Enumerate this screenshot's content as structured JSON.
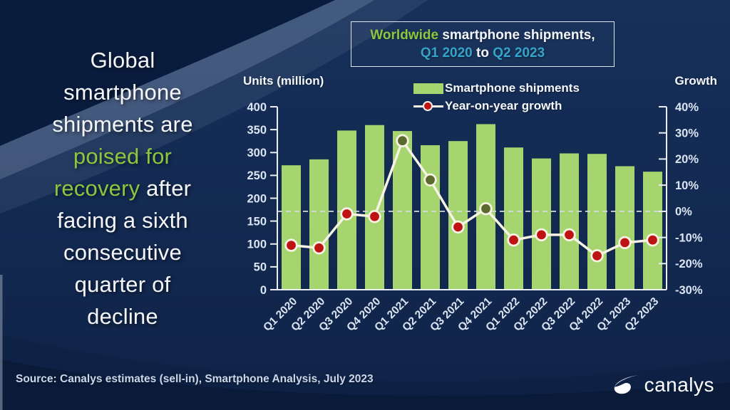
{
  "slide": {
    "headline": {
      "lines": [
        [
          {
            "t": "Global",
            "g": false
          }
        ],
        [
          {
            "t": "smartphone",
            "g": false
          }
        ],
        [
          {
            "t": "shipments are",
            "g": false
          }
        ],
        [
          {
            "t": "poised for",
            "g": true
          }
        ],
        [
          {
            "t": "recovery",
            "g": true
          },
          {
            "t": " after",
            "g": false
          }
        ],
        [
          {
            "t": "facing a sixth",
            "g": false
          }
        ],
        [
          {
            "t": "consecutive",
            "g": false
          }
        ],
        [
          {
            "t": "quarter of",
            "g": false
          }
        ],
        [
          {
            "t": "decline",
            "g": false
          }
        ]
      ]
    },
    "title": {
      "part_green": "Worldwide",
      "part_white": " smartphone shipments,",
      "range_start": "Q1 2020",
      "range_mid": " to ",
      "range_end": "Q2 2023"
    },
    "source_text": "Source: Canalys estimates (sell-in), Smartphone Analysis, July 2023",
    "logo_text": "canalys"
  },
  "chart_data": {
    "type": "bar",
    "title": "Worldwide smartphone shipments, Q1 2020 to Q2 2023",
    "categories": [
      "Q1 2020",
      "Q2 2020",
      "Q3 2020",
      "Q4 2020",
      "Q1 2021",
      "Q2 2021",
      "Q3 2021",
      "Q4 2021",
      "Q1 2022",
      "Q2 2022",
      "Q3 2022",
      "Q4 2022",
      "Q1 2023",
      "Q2 2023"
    ],
    "series": [
      {
        "name": "Smartphone shipments",
        "type": "bar",
        "axis": "left",
        "values": [
          272,
          285,
          348,
          360,
          347,
          316,
          325,
          362,
          311,
          287,
          298,
          297,
          270,
          258
        ]
      },
      {
        "name": "Year-on-year growth",
        "type": "line",
        "axis": "right",
        "values": [
          -13,
          -14,
          -1,
          -2,
          27,
          12,
          -6,
          1,
          -11,
          -9,
          -9,
          -17,
          -12,
          -11
        ]
      }
    ],
    "left_axis": {
      "label": "Units (million)",
      "min": 0,
      "max": 400,
      "ticks": [
        400,
        350,
        300,
        250,
        200,
        150,
        100,
        50,
        0
      ]
    },
    "right_axis": {
      "label": "Growth",
      "min": -30,
      "max": 40,
      "ticks": [
        40,
        30,
        20,
        10,
        0,
        -10,
        -20,
        -30
      ],
      "tick_suffix": "%"
    },
    "zero_growth_dashed_line": true,
    "legend_position": "top",
    "grid": false,
    "colors": {
      "bar": "#a6d46f",
      "line": "#f6f3e4",
      "dot_negative": "#bf1313",
      "dot_positive": "#5c6b2d",
      "axis": "#e9eef4",
      "dashed": "#d3dade",
      "accent_green": "#8dc63f",
      "accent_cyan": "#35a4c9",
      "background": "#14294e"
    }
  }
}
